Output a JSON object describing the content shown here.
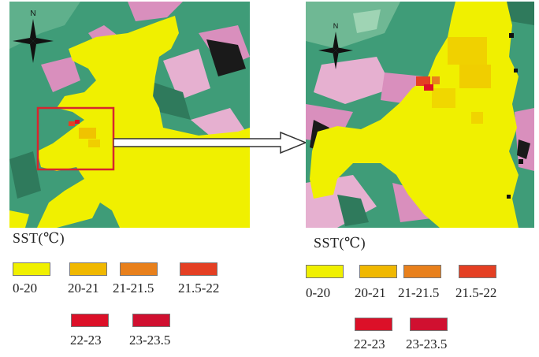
{
  "legend": {
    "title": "SST(℃)",
    "classes": [
      {
        "label": "0-20",
        "color": "#f0f000"
      },
      {
        "label": "20-21",
        "color": "#f0b800"
      },
      {
        "label": "21-21.5",
        "color": "#e8801c"
      },
      {
        "label": "21.5-22",
        "color": "#e43f23"
      },
      {
        "label": "22-23",
        "color": "#dc1028"
      },
      {
        "label": "23-23.5",
        "color": "#d01030"
      }
    ]
  },
  "north_label": "N",
  "colors": {
    "land_green": "#3f9c78",
    "land_pink": "#d98fbd",
    "shadow_black": "#1a1a1a",
    "highlight_box": "#d6262e"
  },
  "icons": [
    "north-arrow-icon",
    "zoom-arrow-icon"
  ]
}
